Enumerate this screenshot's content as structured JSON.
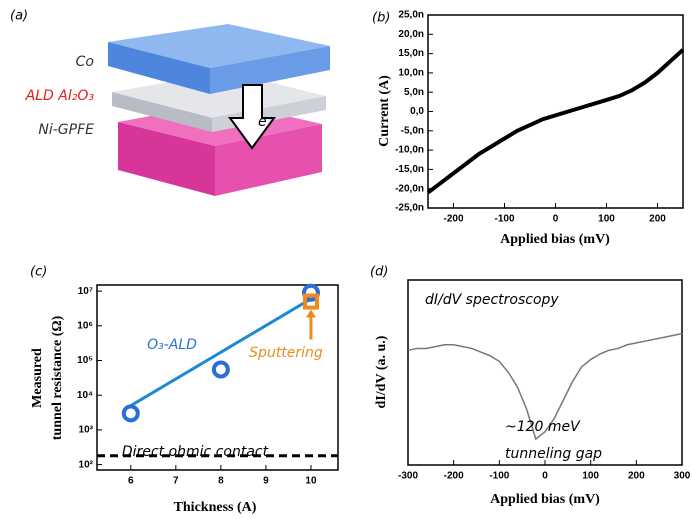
{
  "diagram": {
    "panel_label": "(a)",
    "layers": [
      "Co",
      "ALD Al₂O₃",
      "Ni-GPFE"
    ],
    "electron": "e⁻"
  },
  "chart_data": [
    {
      "type": "line",
      "panel_label": "(b)",
      "xlabel": "Applied bias (mV)",
      "ylabel": "Current (A)",
      "xlim": [
        -250,
        250
      ],
      "xticks": [
        -200,
        -100,
        0,
        100,
        200
      ],
      "ylim": [
        -2.5e-08,
        2.5e-08
      ],
      "yticks": [
        {
          "value": -2.5e-08,
          "label": "-25,0n"
        },
        {
          "value": -2e-08,
          "label": "-20,0n"
        },
        {
          "value": -1.5e-08,
          "label": "-15,0n"
        },
        {
          "value": -1e-08,
          "label": "-10,0n"
        },
        {
          "value": -5e-09,
          "label": "-5,0n"
        },
        {
          "value": 0,
          "label": "0,0"
        },
        {
          "value": 5e-09,
          "label": "5,0n"
        },
        {
          "value": 1e-08,
          "label": "10,0n"
        },
        {
          "value": 1.5e-08,
          "label": "15,0n"
        },
        {
          "value": 2e-08,
          "label": "20,0n"
        },
        {
          "value": 2.5e-08,
          "label": "25,0n"
        }
      ],
      "x": [
        -250,
        -225,
        -200,
        -175,
        -150,
        -125,
        -100,
        -75,
        -50,
        -25,
        0,
        25,
        50,
        75,
        100,
        125,
        150,
        175,
        200,
        225,
        250
      ],
      "series": [
        {
          "color": "#000000",
          "values": [
            -2.1e-08,
            -1.85e-08,
            -1.6e-08,
            -1.35e-08,
            -1.1e-08,
            -9e-09,
            -7e-09,
            -5e-09,
            -3.5e-09,
            -2e-09,
            -1e-09,
            0,
            1e-09,
            2e-09,
            3e-09,
            4e-09,
            5.5e-09,
            7.5e-09,
            1e-08,
            1.3e-08,
            1.6e-08
          ]
        }
      ]
    },
    {
      "type": "scatter",
      "panel_label": "(c)",
      "xlabel": "Thickness (A)",
      "ylabel": [
        "Measured",
        "tunnel resistance (Ω)"
      ],
      "xlim": [
        5.25,
        10.6
      ],
      "xticks": [
        6,
        7,
        8,
        9,
        10
      ],
      "yscale": "log",
      "ylim": [
        70,
        15000000
      ],
      "yticks": [
        {
          "value": 100,
          "label": "10²"
        },
        {
          "value": 1000,
          "label": "10³"
        },
        {
          "value": 10000,
          "label": "10⁴"
        },
        {
          "value": 100000,
          "label": "10⁵"
        },
        {
          "value": 1000000,
          "label": "10⁶"
        },
        {
          "value": 10000000,
          "label": "10⁷"
        }
      ],
      "series": [
        {
          "name": "O₃-ALD",
          "color": "#2a6fd6",
          "marker": "circle",
          "x": [
            6,
            8,
            10
          ],
          "values": [
            3000,
            55000,
            9000000
          ]
        },
        {
          "name": "Sputtering",
          "color": "#f08a1c",
          "marker": "square",
          "x": [
            10
          ],
          "values": [
            5000000
          ]
        }
      ],
      "fit": {
        "color": "#1a8ad4",
        "x": [
          6,
          10
        ],
        "values": [
          5000,
          6000000
        ]
      },
      "reference": {
        "value": 180,
        "label": "Direct ohmic contact"
      }
    },
    {
      "type": "line",
      "panel_label": "(d)",
      "xlabel": "Applied bias (mV)",
      "ylabel": "dI/dV (a. u.)",
      "xlim": [
        -300,
        300
      ],
      "xticks": [
        -300,
        -200,
        -100,
        0,
        100,
        200,
        300
      ],
      "ylim": [
        0,
        1
      ],
      "x": [
        -300,
        -280,
        -260,
        -240,
        -220,
        -200,
        -180,
        -160,
        -140,
        -120,
        -100,
        -80,
        -60,
        -40,
        -20,
        0,
        20,
        40,
        60,
        80,
        100,
        120,
        140,
        160,
        180,
        200,
        220,
        240,
        260,
        280,
        300
      ],
      "series": [
        {
          "color": "#777777",
          "values": [
            0.62,
            0.63,
            0.63,
            0.64,
            0.65,
            0.65,
            0.64,
            0.63,
            0.61,
            0.59,
            0.56,
            0.5,
            0.42,
            0.3,
            0.14,
            0.18,
            0.25,
            0.35,
            0.45,
            0.53,
            0.57,
            0.6,
            0.62,
            0.63,
            0.65,
            0.66,
            0.67,
            0.68,
            0.69,
            0.7,
            0.71
          ]
        }
      ],
      "annotations": [
        "dI/dV spectroscopy",
        "~120 meV",
        "tunneling gap"
      ]
    }
  ]
}
